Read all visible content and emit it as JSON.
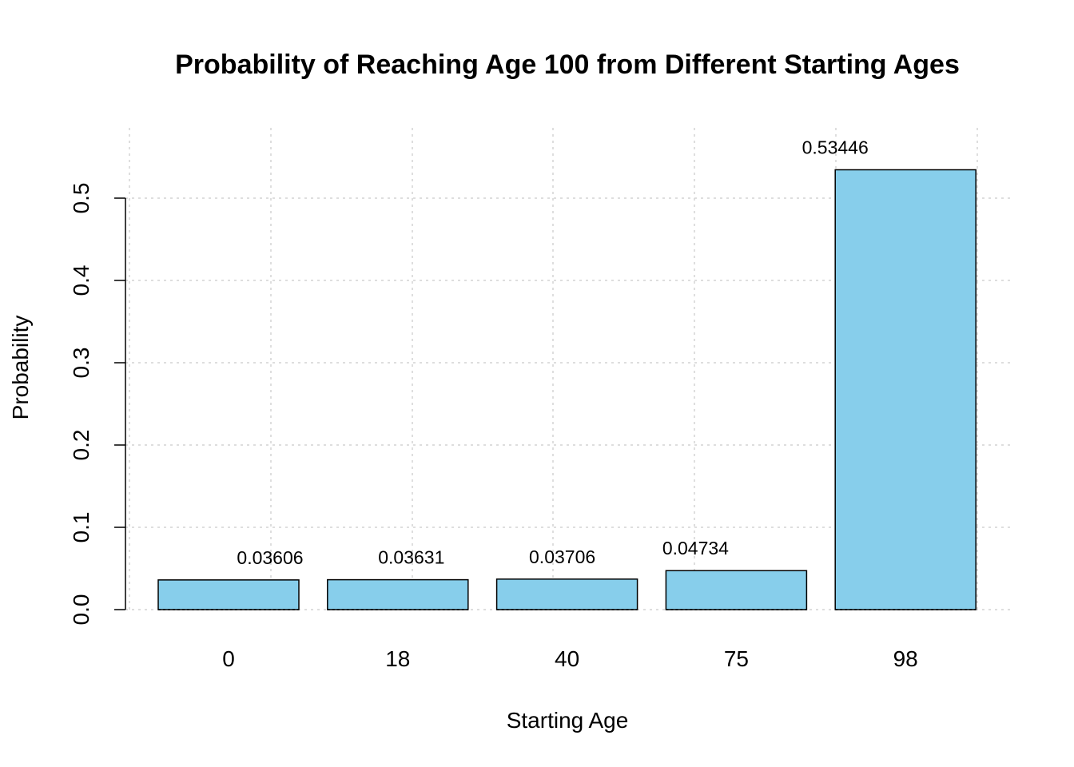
{
  "chart_data": {
    "type": "bar",
    "title": "Probability of Reaching Age 100 from Different Starting Ages",
    "xlabel": "Starting Age",
    "ylabel": "Probability",
    "categories": [
      "0",
      "18",
      "40",
      "75",
      "98"
    ],
    "values": [
      0.03606,
      0.03631,
      0.03706,
      0.04734,
      0.53446
    ],
    "data_labels": [
      "0.03606",
      "0.03631",
      "0.03706",
      "0.04734",
      "0.53446"
    ],
    "y_ticks": [
      0.0,
      0.1,
      0.2,
      0.3,
      0.4,
      0.5
    ],
    "y_tick_labels": [
      "0.0",
      "0.1",
      "0.2",
      "0.3",
      "0.4",
      "0.5"
    ],
    "grid": true,
    "bar_color": "#87CEEB",
    "grid_color": "#D3D3D3"
  }
}
